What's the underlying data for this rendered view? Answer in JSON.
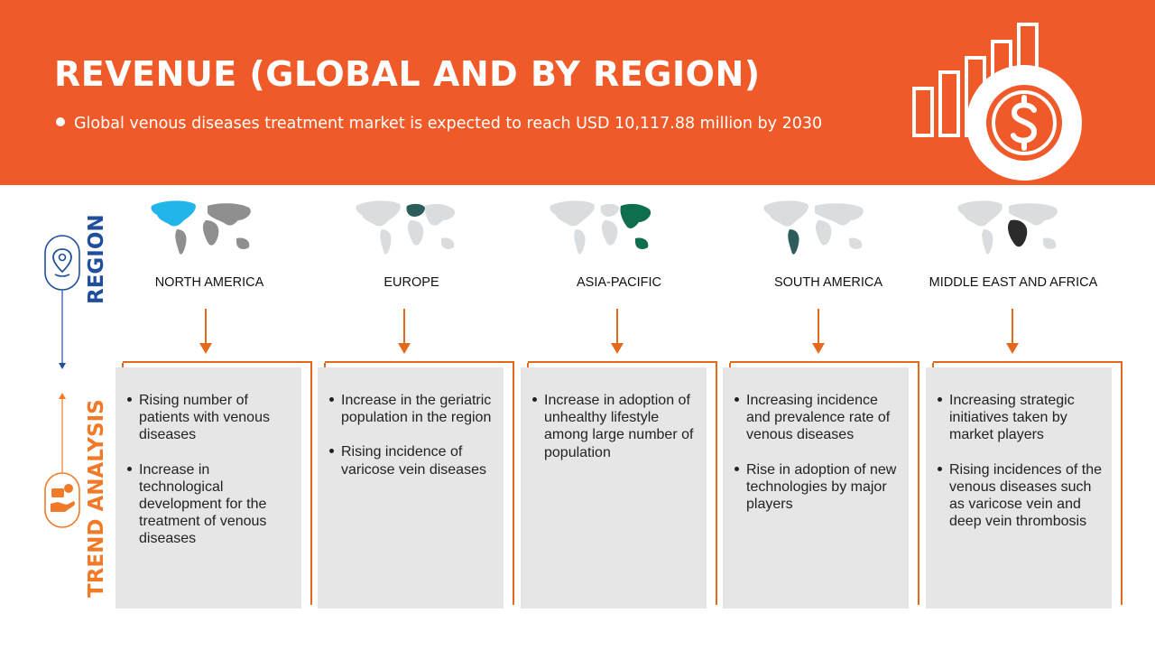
{
  "header": {
    "title": "REVENUE (GLOBAL AND BY REGION)",
    "subtitle": "Global  venous diseases treatment market is expected to reach USD 10,117.88 million by 2030"
  },
  "side_labels": {
    "region": "REGION",
    "trend": "TREND ANALYSIS"
  },
  "colors": {
    "header_bg": "#f05a28",
    "region_blue": "#1f4f9c",
    "trend_orange": "#f07a28",
    "arrow": "#e26a1c",
    "card_bg": "#e6e6e6",
    "north_america": "#22b5ea",
    "europe": "#2d5d5b",
    "asia_pacific": "#0f6e4e",
    "south_america": "#2d5d5b",
    "middle_east_africa": "#2b2b2b"
  },
  "icons": [
    "location-pin-icon",
    "hand-coin-icon",
    "bar-chart-dollar-icon",
    "world-map-icon"
  ],
  "regions": [
    {
      "name": "NORTH AMERICA",
      "trends": [
        "Rising number of patients with venous diseases",
        "Increase in technological development for the treatment of venous diseases"
      ]
    },
    {
      "name": "EUROPE",
      "trends": [
        "Increase in the geriatric population in the region",
        "Rising  incidence of varicose vein diseases"
      ]
    },
    {
      "name": "ASIA-PACIFIC",
      "trends": [
        "Increase in adoption of unhealthy lifestyle among large number of population"
      ]
    },
    {
      "name": "SOUTH AMERICA",
      "trends": [
        "Increasing incidence and prevalence rate of venous diseases",
        "Rise in adoption of new technologies by major players"
      ]
    },
    {
      "name": "MIDDLE EAST AND AFRICA",
      "trends": [
        "Increasing strategic initiatives taken by market players",
        "Rising incidences of the venous diseases such as varicose vein and deep vein thrombosis"
      ]
    }
  ]
}
